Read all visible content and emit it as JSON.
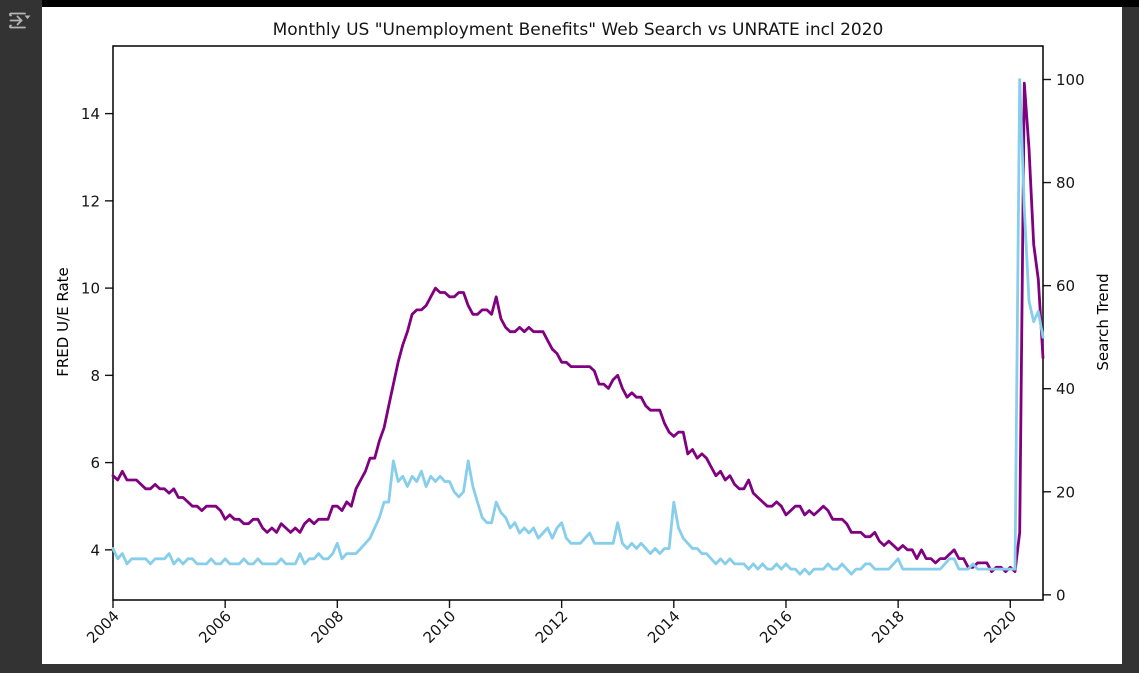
{
  "window": {
    "background": "#333333",
    "top_strip_color": "#000000",
    "toolbar": {
      "icon": "export-plot-arrow-icon",
      "icon_color": "#b5b5b5"
    }
  },
  "chart_data": {
    "type": "line",
    "title": "Monthly US \"Unemployment Benefits\" Web Search vs UNRATE incl 2020",
    "grid": false,
    "legend": "none",
    "x_frequency": "monthly",
    "x_start": "2004-01",
    "x_end": "2020-08",
    "xlim": [
      2004.0,
      2020.583
    ],
    "xticks": [
      2004,
      2006,
      2008,
      2010,
      2012,
      2014,
      2016,
      2018,
      2020
    ],
    "axes": {
      "left": {
        "label": "FRED U/E Rate",
        "color": "#800080",
        "tick_color": "#151515",
        "ticks": [
          4,
          6,
          8,
          10,
          12,
          14
        ],
        "range": [
          2.85,
          15.55
        ]
      },
      "right": {
        "label": "Search Trend",
        "color": "#87CEEB",
        "tick_color": "#151515",
        "ticks": [
          0,
          20,
          40,
          60,
          80,
          100
        ],
        "range": [
          -1,
          106.5
        ]
      }
    },
    "series": [
      {
        "name": "FRED U/E Rate",
        "axis": "left",
        "color": "#800080",
        "values": [
          5.7,
          5.6,
          5.8,
          5.6,
          5.6,
          5.6,
          5.5,
          5.4,
          5.4,
          5.5,
          5.4,
          5.4,
          5.3,
          5.4,
          5.2,
          5.2,
          5.1,
          5.0,
          5.0,
          4.9,
          5.0,
          5.0,
          5.0,
          4.9,
          4.7,
          4.8,
          4.7,
          4.7,
          4.6,
          4.6,
          4.7,
          4.7,
          4.5,
          4.4,
          4.5,
          4.4,
          4.6,
          4.5,
          4.4,
          4.5,
          4.4,
          4.6,
          4.7,
          4.6,
          4.7,
          4.7,
          4.7,
          5.0,
          5.0,
          4.9,
          5.1,
          5.0,
          5.4,
          5.6,
          5.8,
          6.1,
          6.1,
          6.5,
          6.8,
          7.3,
          7.8,
          8.3,
          8.7,
          9.0,
          9.4,
          9.5,
          9.5,
          9.6,
          9.8,
          10.0,
          9.9,
          9.9,
          9.8,
          9.8,
          9.9,
          9.9,
          9.6,
          9.4,
          9.4,
          9.5,
          9.5,
          9.4,
          9.8,
          9.3,
          9.1,
          9.0,
          9.0,
          9.1,
          9.0,
          9.1,
          9.0,
          9.0,
          9.0,
          8.8,
          8.6,
          8.5,
          8.3,
          8.3,
          8.2,
          8.2,
          8.2,
          8.2,
          8.2,
          8.1,
          7.8,
          7.8,
          7.7,
          7.9,
          8.0,
          7.7,
          7.5,
          7.6,
          7.5,
          7.5,
          7.3,
          7.2,
          7.2,
          7.2,
          6.9,
          6.7,
          6.6,
          6.7,
          6.7,
          6.2,
          6.3,
          6.1,
          6.2,
          6.1,
          5.9,
          5.7,
          5.8,
          5.6,
          5.7,
          5.5,
          5.4,
          5.4,
          5.6,
          5.3,
          5.2,
          5.1,
          5.0,
          5.0,
          5.1,
          5.0,
          4.8,
          4.9,
          5.0,
          5.0,
          4.8,
          4.9,
          4.8,
          4.9,
          5.0,
          4.9,
          4.7,
          4.7,
          4.7,
          4.6,
          4.4,
          4.4,
          4.4,
          4.3,
          4.3,
          4.4,
          4.2,
          4.1,
          4.2,
          4.1,
          4.0,
          4.1,
          4.0,
          4.0,
          3.8,
          4.0,
          3.8,
          3.8,
          3.7,
          3.8,
          3.8,
          3.9,
          4.0,
          3.8,
          3.8,
          3.6,
          3.6,
          3.7,
          3.7,
          3.7,
          3.5,
          3.6,
          3.6,
          3.5,
          3.6,
          3.5,
          4.4,
          14.7,
          13.2,
          11.0,
          10.2,
          8.4
        ]
      },
      {
        "name": "Search Trend",
        "axis": "right",
        "color": "#87CEEB",
        "values": [
          9,
          7,
          8,
          6,
          7,
          7,
          7,
          7,
          6,
          7,
          7,
          7,
          8,
          6,
          7,
          6,
          7,
          7,
          6,
          6,
          6,
          7,
          6,
          6,
          7,
          6,
          6,
          6,
          7,
          6,
          6,
          7,
          6,
          6,
          6,
          6,
          7,
          6,
          6,
          6,
          8,
          6,
          7,
          7,
          8,
          7,
          7,
          8,
          10,
          7,
          8,
          8,
          8,
          9,
          10,
          11,
          13,
          15,
          18,
          18,
          26,
          22,
          23,
          21,
          23,
          22,
          24,
          21,
          23,
          22,
          23,
          22,
          22,
          20,
          19,
          20,
          26,
          21,
          18,
          15,
          14,
          14,
          18,
          16,
          15,
          13,
          14,
          12,
          13,
          12,
          13,
          11,
          12,
          13,
          11,
          13,
          14,
          11,
          10,
          10,
          10,
          11,
          12,
          10,
          10,
          10,
          10,
          10,
          14,
          10,
          9,
          10,
          9,
          10,
          9,
          8,
          9,
          8,
          9,
          9,
          18,
          13,
          11,
          10,
          9,
          9,
          8,
          8,
          7,
          6,
          7,
          6,
          7,
          6,
          6,
          6,
          5,
          6,
          5,
          6,
          5,
          5,
          6,
          5,
          6,
          5,
          5,
          4,
          5,
          4,
          5,
          5,
          5,
          6,
          5,
          5,
          6,
          5,
          4,
          5,
          5,
          6,
          6,
          5,
          5,
          5,
          5,
          6,
          7,
          5,
          5,
          5,
          5,
          5,
          5,
          5,
          5,
          5,
          6,
          7,
          7,
          5,
          5,
          5,
          6,
          5,
          5,
          5,
          5,
          5,
          5,
          5,
          5,
          5,
          100,
          75,
          57,
          53,
          55,
          50
        ]
      }
    ]
  }
}
